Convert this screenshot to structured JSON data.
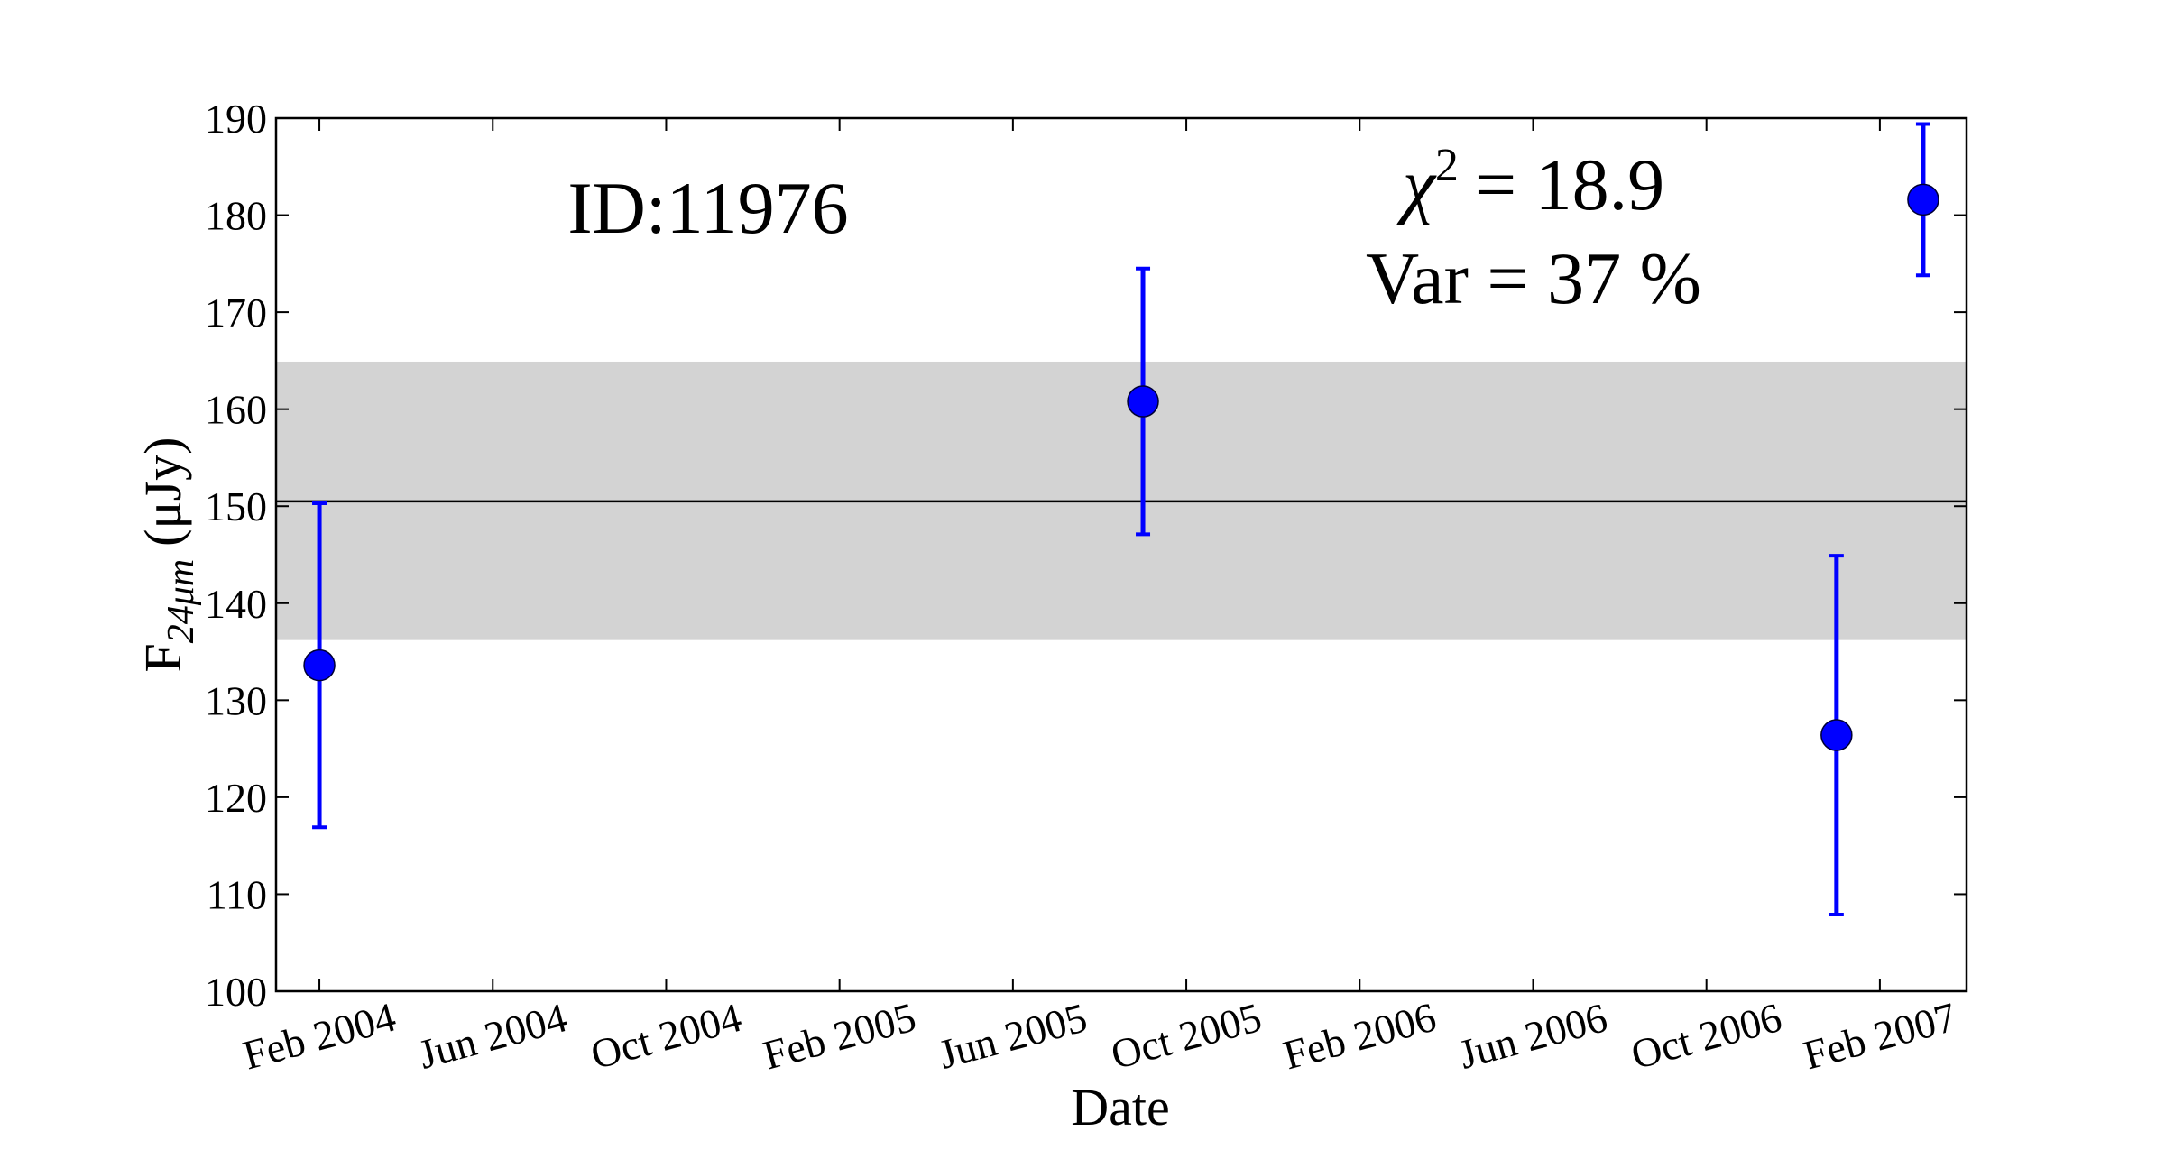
{
  "chart_data": {
    "type": "errorbar",
    "x_label": "Date",
    "y_label": {
      "main": "F",
      "sub": "24μm",
      "unit": "(μJy)"
    },
    "annotations": {
      "id": "ID:11976",
      "chi2_symbol": "χ",
      "chi2_exp": "2",
      "chi2_value": "= 18.9",
      "variability": "Var = 37 %"
    },
    "x": [
      "2004-02",
      "2005-09",
      "2007-01",
      "2007-03"
    ],
    "series": [
      {
        "color": "#0000ff",
        "values": [
          133.6,
          160.8,
          126.4,
          181.6
        ],
        "errors": [
          16.7,
          13.7,
          18.5,
          7.8
        ]
      }
    ],
    "mean": 150.5,
    "mean_color": "#000000",
    "band": [
      136.2,
      164.9
    ],
    "band_color": "#d3d3d3",
    "xlim": [
      "2004-01",
      "2007-04"
    ],
    "xticks": [
      {
        "value": "2004-02",
        "label": "Feb 2004"
      },
      {
        "value": "2004-06",
        "label": "Jun 2004"
      },
      {
        "value": "2004-10",
        "label": "Oct 2004"
      },
      {
        "value": "2005-02",
        "label": "Feb 2005"
      },
      {
        "value": "2005-06",
        "label": "Jun 2005"
      },
      {
        "value": "2005-10",
        "label": "Oct 2005"
      },
      {
        "value": "2006-02",
        "label": "Feb 2006"
      },
      {
        "value": "2006-06",
        "label": "Jun 2006"
      },
      {
        "value": "2006-10",
        "label": "Oct 2006"
      },
      {
        "value": "2007-02",
        "label": "Feb 2007"
      }
    ],
    "ylim": [
      100,
      190
    ],
    "yticks": [
      100,
      110,
      120,
      130,
      140,
      150,
      160,
      170,
      180,
      190
    ]
  }
}
